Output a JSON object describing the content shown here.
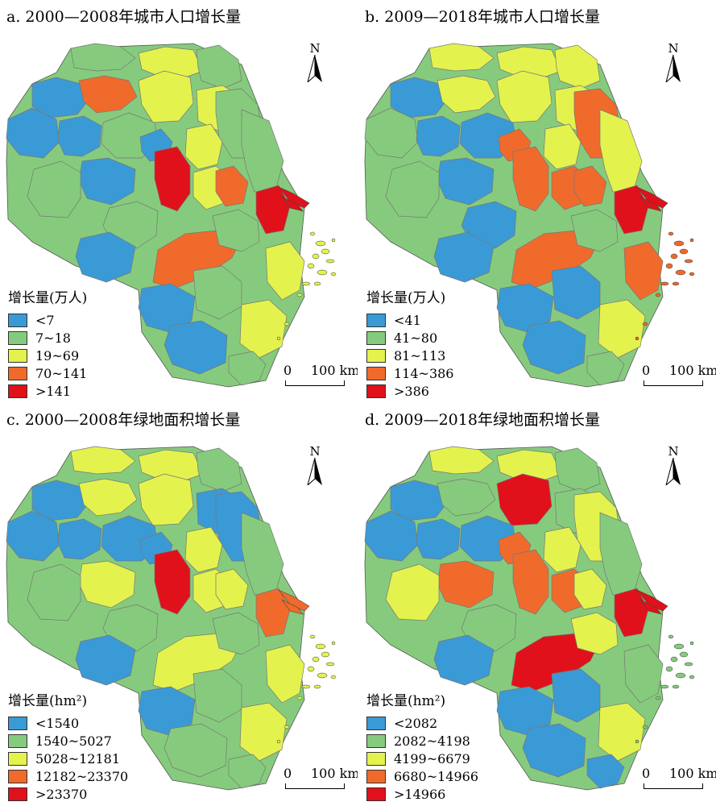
{
  "colors": {
    "c1": "#3a9ad6",
    "c2": "#86cb7d",
    "c3": "#e4f24e",
    "c4": "#f06a2c",
    "c5": "#e0111a"
  },
  "panels": [
    {
      "title": "a. 2000—2008年城市人口增长量",
      "legend_title": "增长量(万人)",
      "classes": [
        "<7",
        "7~18",
        "19~69",
        "70~141",
        ">141"
      ],
      "north": "N",
      "scale": {
        "zero": "0",
        "text": "100 km"
      },
      "regions": [
        2,
        3,
        1,
        3,
        2,
        4,
        1,
        2,
        3,
        1,
        1,
        1,
        2,
        2,
        3,
        2,
        5,
        3,
        4,
        5,
        2,
        4,
        2,
        1,
        3,
        2,
        1,
        1,
        3,
        2
      ]
    },
    {
      "title": "b. 2009—2018年城市人口增长量",
      "legend_title": "增长量(万人)",
      "classes": [
        "<41",
        "41~80",
        "81~113",
        "114~386",
        ">386"
      ],
      "north": "N",
      "scale": {
        "zero": "0",
        "text": "100 km"
      },
      "regions": [
        3,
        3,
        1,
        3,
        3,
        3,
        2,
        1,
        3,
        1,
        1,
        4,
        4,
        3,
        3,
        2,
        4,
        4,
        4,
        5,
        1,
        4,
        2,
        1,
        4,
        1,
        1,
        1,
        3,
        2
      ]
    },
    {
      "title": "c. 2000—2008年绿地面积增长量",
      "legend_title": "增长量(hm²)",
      "classes": [
        "<1540",
        "1540~5027",
        "5028~12181",
        "12182~23370",
        ">23370"
      ],
      "north": "N",
      "scale": {
        "zero": "0",
        "text": "100 km"
      },
      "regions": [
        3,
        3,
        1,
        3,
        2,
        3,
        1,
        1,
        1,
        1,
        3,
        1,
        1,
        2,
        3,
        2,
        5,
        3,
        3,
        4,
        2,
        3,
        2,
        1,
        3,
        2,
        1,
        2,
        3,
        2
      ]
    },
    {
      "title": "d. 2009—2018年绿地面积增长量",
      "legend_title": "增长量(hm²)",
      "classes": [
        "<2082",
        "2082~4198",
        "4199~6679",
        "6680~14966",
        ">14966"
      ],
      "north": "N",
      "scale": {
        "zero": "0",
        "text": "100 km"
      },
      "regions": [
        3,
        3,
        1,
        5,
        2,
        2,
        1,
        1,
        2,
        1,
        4,
        4,
        3,
        2,
        3,
        3,
        4,
        4,
        3,
        5,
        2,
        5,
        3,
        1,
        2,
        1,
        1,
        1,
        3,
        1
      ]
    }
  ]
}
